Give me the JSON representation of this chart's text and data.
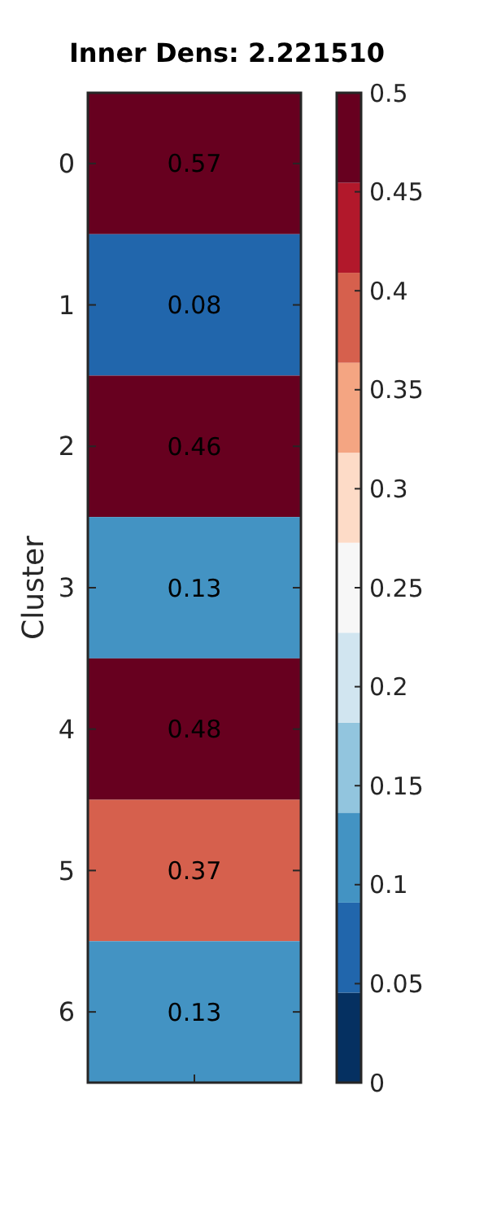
{
  "chart_data": {
    "type": "heatmap",
    "title": "Inner Dens: 2.221510",
    "ylabel": "Cluster",
    "categories": [
      null
    ],
    "y_categories": [
      "0",
      "1",
      "2",
      "3",
      "4",
      "5",
      "6"
    ],
    "cells": [
      [
        0.57
      ],
      [
        0.08
      ],
      [
        0.46
      ],
      [
        0.13
      ],
      [
        0.48
      ],
      [
        0.37
      ],
      [
        0.13
      ]
    ],
    "data_labels": true,
    "clim": [
      0,
      0.5
    ],
    "cticks": [
      0,
      0.05,
      0.1,
      0.15,
      0.2,
      0.25,
      0.3,
      0.35,
      0.4,
      0.45,
      0.5
    ],
    "colors": [
      "#053061",
      "#2166ac",
      "#4393c3",
      "#92c5de",
      "#d1e5f0",
      "#f7f7f7",
      "#fddbc7",
      "#f4a582",
      "#d6604d",
      "#b2182b",
      "#67001f"
    ]
  }
}
